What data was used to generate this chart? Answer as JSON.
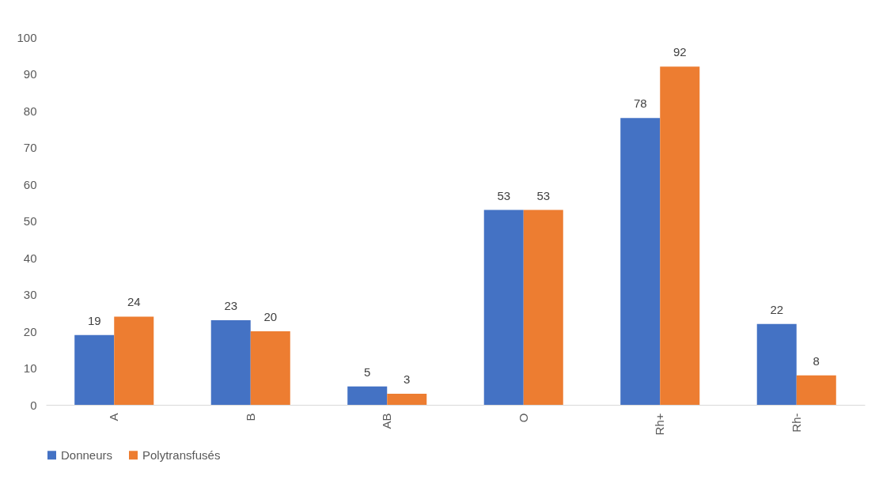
{
  "chart_data": {
    "type": "bar",
    "categories": [
      "A",
      "B",
      "AB",
      "O",
      "Rh+",
      "Rh-"
    ],
    "series": [
      {
        "name": "Donneurs",
        "color": "#4472c4",
        "values": [
          19,
          23,
          5,
          53,
          78,
          22
        ]
      },
      {
        "name": "Polytransfusés",
        "color": "#ed7d31",
        "values": [
          24,
          20,
          3,
          53,
          92,
          8
        ]
      }
    ],
    "ylim": [
      0,
      100
    ],
    "yticks": [
      0,
      10,
      20,
      30,
      40,
      50,
      60,
      70,
      80,
      90,
      100
    ],
    "data_labels": true,
    "legend": "bottom"
  }
}
